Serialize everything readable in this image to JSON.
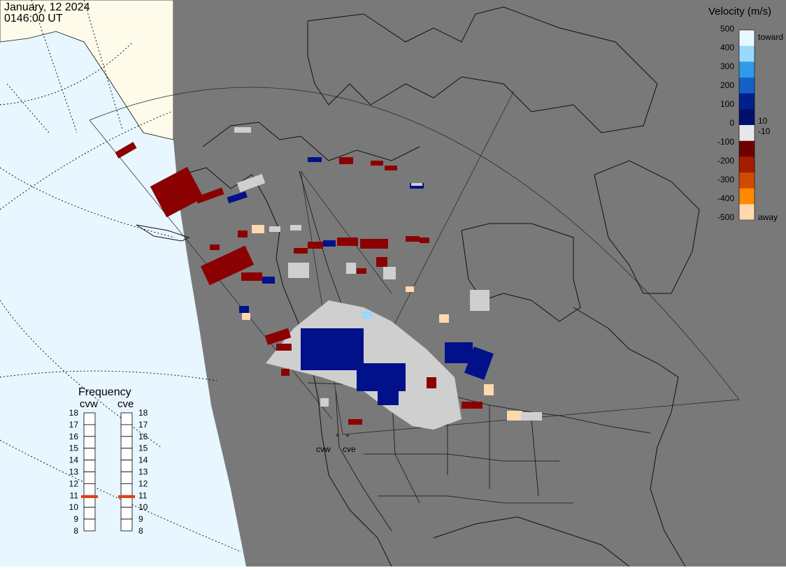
{
  "header": {
    "date": "January, 12 2024",
    "time": "0146:00 UT"
  },
  "colors": {
    "ocean": "#e8f6ff",
    "land_unlit": "#fffbea",
    "night": "#797979",
    "no_velocity": "#cfcfcf",
    "coast": "#111111"
  },
  "legend": {
    "title": "Velocity (m/s)",
    "ticks": [
      "500",
      "400",
      "300",
      "200",
      "100",
      "0",
      "-100",
      "-200",
      "-300",
      "-400",
      "-500"
    ],
    "small_labels": {
      "pos": "10",
      "neg": "-10"
    },
    "toward_label": "toward",
    "away_label": "away",
    "gradient": [
      "#e8f8ff",
      "#9ad8ff",
      "#2f9ae8",
      "#1460c8",
      "#00208c",
      "#00106c",
      "#e8e8e8",
      "#700000",
      "#a51c00",
      "#d24a00",
      "#ff8a00",
      "#ffd8b0"
    ]
  },
  "frequency": {
    "title": "Frequency",
    "radars": [
      "cvw",
      "cve"
    ],
    "scale": [
      "18",
      "17",
      "16",
      "15",
      "14",
      "13",
      "12",
      "11",
      "10",
      "9",
      "8"
    ],
    "cvw_mhz": 10.9,
    "cve_mhz": 10.9,
    "marker_color": "#e0401a"
  },
  "radar_sites": {
    "cvw": "cvw",
    "cve": "cve"
  }
}
